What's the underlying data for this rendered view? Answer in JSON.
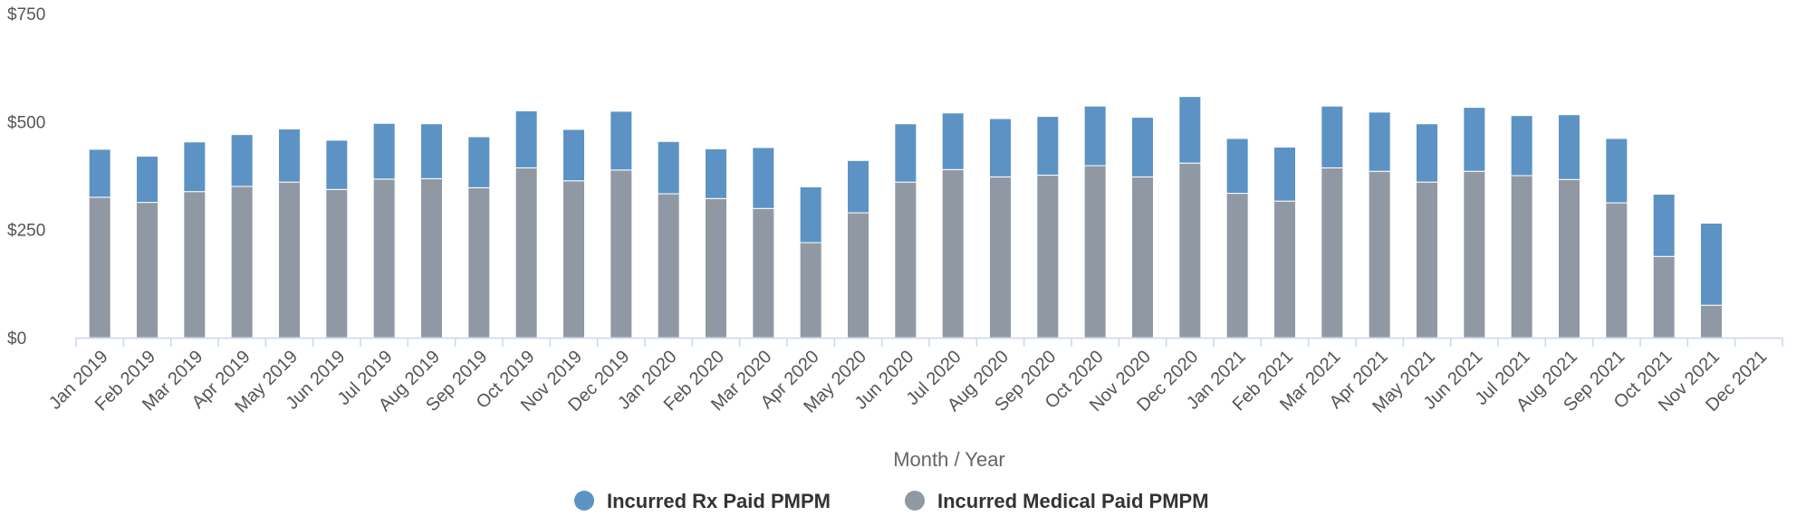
{
  "chart_data": {
    "type": "bar",
    "stacked": true,
    "categories": [
      "Jan 2019",
      "Feb 2019",
      "Mar 2019",
      "Apr 2019",
      "May 2019",
      "Jun 2019",
      "Jul 2019",
      "Aug 2019",
      "Sep 2019",
      "Oct 2019",
      "Nov 2019",
      "Dec 2019",
      "Jan 2020",
      "Feb 2020",
      "Mar 2020",
      "Apr 2020",
      "May 2020",
      "Jun 2020",
      "Jul 2020",
      "Aug 2020",
      "Sep 2020",
      "Oct 2020",
      "Nov 2020",
      "Dec 2020",
      "Jan 2021",
      "Feb 2021",
      "Mar 2021",
      "Apr 2021",
      "May 2021",
      "Jun 2021",
      "Jul 2021",
      "Aug 2021",
      "Sep 2021",
      "Oct 2021",
      "Nov 2021",
      "Dec 2021"
    ],
    "series": [
      {
        "name": "Incurred Medical Paid PMPM",
        "color": "#9098a3",
        "values": [
          325,
          313,
          338,
          350,
          360,
          343,
          367,
          368,
          347,
          393,
          363,
          388,
          333,
          322,
          299,
          220,
          289,
          360,
          389,
          372,
          376,
          398,
          372,
          404,
          334,
          316,
          393,
          385,
          360,
          385,
          375,
          366,
          312,
          188,
          75,
          0
        ]
      },
      {
        "name": "Incurred Rx Paid PMPM",
        "color": "#5c93c4",
        "values": [
          111,
          107,
          115,
          120,
          123,
          114,
          129,
          127,
          118,
          132,
          119,
          136,
          121,
          115,
          141,
          129,
          121,
          135,
          131,
          135,
          136,
          138,
          138,
          154,
          127,
          125,
          143,
          137,
          135,
          148,
          139,
          150,
          149,
          144,
          190,
          0
        ]
      }
    ],
    "xlabel": "Month / Year",
    "ylabel": "",
    "ylim": [
      0,
      750
    ],
    "yticks": [
      0,
      250,
      500,
      750
    ],
    "ytick_labels": [
      "$0",
      "$250",
      "$500",
      "$750"
    ],
    "grid": false,
    "legend": {
      "position": "bottom-center",
      "entries": [
        {
          "label": "Incurred Rx Paid PMPM",
          "color": "#5c93c4"
        },
        {
          "label": "Incurred Medical Paid PMPM",
          "color": "#9098a3"
        }
      ]
    }
  }
}
